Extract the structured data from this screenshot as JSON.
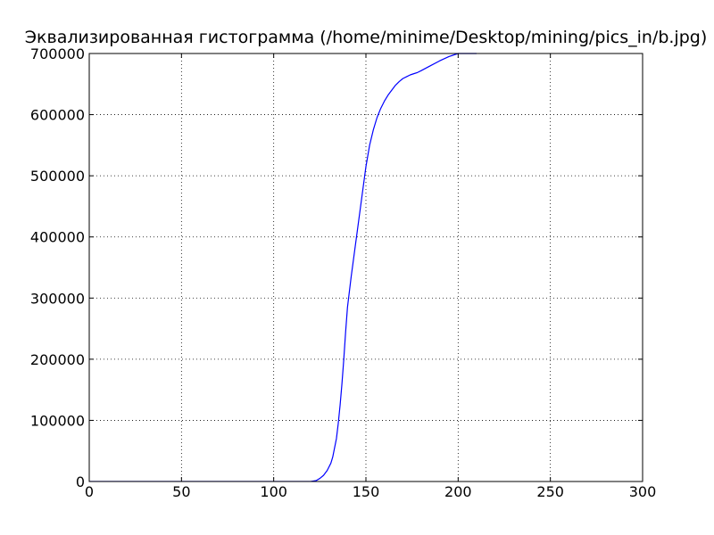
{
  "chart_data": {
    "type": "line",
    "title": "Эквализированная гистограмма (/home/minime/Desktop/mining/pics_in/b.jpg)",
    "xlabel": "",
    "ylabel": "",
    "xlim": [
      0,
      300
    ],
    "ylim": [
      0,
      700000
    ],
    "grid": true,
    "line_color": "#0000ff",
    "x_ticks": [
      0,
      50,
      100,
      150,
      200,
      250,
      300
    ],
    "x_tick_labels": [
      "0",
      "50",
      "100",
      "150",
      "200",
      "250",
      "300"
    ],
    "y_ticks": [
      0,
      100000,
      200000,
      300000,
      400000,
      500000,
      600000,
      700000
    ],
    "y_tick_labels": [
      "0",
      "100000",
      "200000",
      "300000",
      "400000",
      "500000",
      "600000",
      "700000"
    ],
    "series": [
      {
        "x": [
          0,
          50,
          100,
          120,
          123,
          125,
          127,
          129,
          131,
          132,
          133,
          134,
          135,
          136,
          137,
          138,
          139,
          140,
          142,
          144,
          146,
          148,
          150,
          152,
          154,
          156,
          158,
          160,
          162,
          164,
          166,
          168,
          170,
          172,
          174,
          176,
          178,
          180,
          185,
          190,
          195,
          200,
          210
        ],
        "y": [
          0,
          0,
          0,
          0,
          1500,
          5000,
          10000,
          18000,
          30000,
          40000,
          55000,
          70000,
          95000,
          125000,
          160000,
          200000,
          245000,
          285000,
          335000,
          380000,
          425000,
          470000,
          515000,
          550000,
          575000,
          595000,
          610000,
          622000,
          632000,
          640000,
          648000,
          654000,
          659000,
          662000,
          665000,
          667000,
          669000,
          672000,
          680000,
          688000,
          695000,
          700000,
          700000
        ]
      }
    ]
  }
}
